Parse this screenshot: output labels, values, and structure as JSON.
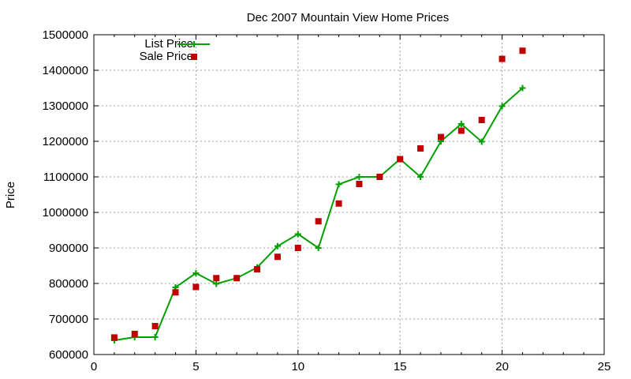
{
  "chart_data": {
    "type": "line",
    "title": "Dec 2007 Mountain View Home Prices",
    "xlabel": "",
    "ylabel": "Price",
    "xlim": [
      0,
      25
    ],
    "ylim": [
      600000,
      1500000
    ],
    "xticks": [
      0,
      5,
      10,
      15,
      20,
      25
    ],
    "yticks": [
      600000,
      700000,
      800000,
      900000,
      1000000,
      1100000,
      1200000,
      1300000,
      1400000,
      1500000
    ],
    "grid": true,
    "legend_position": "top-left",
    "series": [
      {
        "name": "List Price",
        "style": "line+cross",
        "color": "#00a000",
        "x": [
          1,
          2,
          3,
          4,
          5,
          6,
          7,
          8,
          9,
          10,
          11,
          12,
          13,
          14,
          15,
          16,
          17,
          18,
          19,
          20,
          21
        ],
        "y": [
          640000,
          649000,
          649000,
          789000,
          829000,
          799000,
          815000,
          845000,
          905000,
          939000,
          900000,
          1079000,
          1100000,
          1100000,
          1150000,
          1100000,
          1200000,
          1249000,
          1199000,
          1299000,
          1350000
        ]
      },
      {
        "name": "Sale Price",
        "style": "square",
        "color": "#c00000",
        "x": [
          1,
          2,
          3,
          4,
          5,
          6,
          7,
          8,
          9,
          10,
          11,
          12,
          13,
          14,
          15,
          16,
          17,
          18,
          19,
          20,
          21
        ],
        "y": [
          648000,
          658000,
          680000,
          775000,
          790000,
          815000,
          815000,
          840000,
          875000,
          900000,
          975000,
          1025000,
          1080000,
          1100000,
          1150000,
          1180000,
          1212000,
          1230000,
          1260000,
          1432000,
          1455000
        ]
      }
    ]
  }
}
